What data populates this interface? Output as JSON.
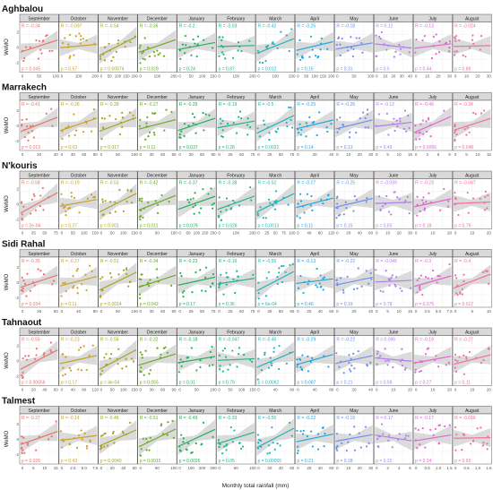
{
  "chart_data": {
    "type": "scatter",
    "xlabel": "Monthly total rainfall (mm)",
    "ylabel": "WeMO",
    "months": [
      "September",
      "October",
      "November",
      "December",
      "January",
      "February",
      "March",
      "April",
      "May",
      "June",
      "July",
      "August"
    ],
    "month_colors": [
      "#e8756b",
      "#c9a227",
      "#a3a51f",
      "#6aab1f",
      "#21b05c",
      "#1fb58f",
      "#1fb5ba",
      "#22a6dd",
      "#6f8ff0",
      "#b27ef0",
      "#e066d2",
      "#f06ea0"
    ],
    "stations": [
      {
        "name": "Aghbalou",
        "r": [
          "R = -0.34",
          "R = -0.097",
          "R = -0.54",
          "R = -0.36",
          "R = -0.2",
          "R = -0.03",
          "R = -0.42",
          "R = -0.25",
          "R = -0.18",
          "R = 0.12",
          "R = -0.13",
          "R = -0.024"
        ],
        "p": [
          "p = 0.045",
          "p = 0.57",
          "p = 0.00074",
          "p = 0.029",
          "p = 0.24",
          "p = 0.87",
          "p = 0.012",
          "p = 0.15",
          "p = 0.31",
          "p = 0.5",
          "p = 0.44",
          "p = 0.89"
        ],
        "xticks": [
          [
            "0",
            "50",
            "100"
          ],
          [
            "0",
            "100",
            "200"
          ],
          [
            "0",
            "50",
            "100",
            "150",
            "200"
          ],
          [
            "0",
            "100",
            "200"
          ],
          [
            "0",
            "50",
            "100",
            "150"
          ],
          [
            "0",
            "100",
            "200"
          ],
          [
            "0",
            "100",
            "200"
          ],
          [
            "0",
            "50",
            "100",
            "150",
            "200"
          ],
          [
            "0",
            "50",
            "100"
          ],
          [
            "0",
            "10",
            "20",
            "30",
            "40"
          ],
          [
            "0",
            "10",
            "20",
            "30"
          ],
          [
            "0",
            "10",
            "20",
            "30"
          ]
        ]
      },
      {
        "name": "Marrakech",
        "r": [
          "R = -0.41",
          "R = -0.36",
          "R = -0.39",
          "R = -0.27",
          "R = -0.35",
          "R = -0.19",
          "R = -0.5",
          "R = -0.25",
          "R = -0.26",
          "R = -0.12",
          "R = -0.46",
          "R = -0.34"
        ],
        "p": [
          "p = 0.013",
          "p = 0.03",
          "p = 0.017",
          "p = 0.11",
          "p = 0.037",
          "p = 0.28",
          "p = 0.0021",
          "p = 0.14",
          "p = 0.13",
          "p = 0.49",
          "p = 0.0056",
          "p = 0.048"
        ],
        "xticks": [
          [
            "0",
            "20",
            "40"
          ],
          [
            "0",
            "30",
            "60",
            "90"
          ],
          [
            "0",
            "50",
            "100"
          ],
          [
            "0",
            "30",
            "60",
            "90"
          ],
          [
            "0",
            "30",
            "60",
            "90"
          ],
          [
            "0",
            "25",
            "50",
            "75"
          ],
          [
            "0",
            "25",
            "50",
            "75"
          ],
          [
            "0",
            "20",
            "40"
          ],
          [
            "0",
            "10",
            "20",
            "30"
          ],
          [
            "0",
            "5",
            "10",
            "15"
          ],
          [
            "0",
            "3",
            "6",
            "9"
          ],
          [
            "0",
            "5",
            "10",
            "15"
          ]
        ]
      },
      {
        "name": "N'kouris",
        "r": [
          "R = -0.58",
          "R = -0.19",
          "R = -0.53",
          "R = -0.42",
          "R = -0.37",
          "R = -0.38",
          "R = -0.52",
          "R = -0.27",
          "R = -0.25",
          "R = -0.039",
          "R = -0.23",
          "R = -0.047"
        ],
        "p": [
          "p = 2e-04",
          "p = 0.27",
          "p = 0.001",
          "p = 0.011",
          "p = 0.029",
          "p = 0.026",
          "p = 0.0013",
          "p = 0.11",
          "p = 0.15",
          "p = 0.83",
          "p = 0.18",
          "p = 0.79"
        ],
        "xticks": [
          [
            "0",
            "25",
            "50",
            "75"
          ],
          [
            "0",
            "50",
            "100",
            "150"
          ],
          [
            "0",
            "50",
            "100",
            "150"
          ],
          [
            "0",
            "50",
            "100"
          ],
          [
            "0",
            "50",
            "100",
            "150",
            "250"
          ],
          [
            "0",
            "100",
            "200"
          ],
          [
            "0",
            "25",
            "50",
            "75",
            "100"
          ],
          [
            "0",
            "40",
            "80",
            "120"
          ],
          [
            "0",
            "20",
            "40",
            "60"
          ],
          [
            "0",
            "10",
            "20",
            "30"
          ],
          [
            "0",
            "10",
            "20"
          ],
          [
            "0",
            "10",
            "20"
          ]
        ]
      },
      {
        "name": "Sidi Rahal",
        "r": [
          "R = -0.35",
          "R = -0.27",
          "R = -0.51",
          "R = -0.34",
          "R = -0.23",
          "R = -0.16",
          "R = -0.55",
          "R = -0.13",
          "R = -0.22",
          "R = -0.048",
          "R = -0.3",
          "R = -0.4"
        ],
        "p": [
          "p = 0.034",
          "p = 0.11",
          "p = 0.0014",
          "p = 0.042",
          "p = 0.17",
          "p = 0.36",
          "p = 6e-04",
          "p = 0.46",
          "p = 0.19",
          "p = 0.78",
          "p = 0.075",
          "p = 0.017"
        ],
        "xticks": [
          [
            "0",
            "25",
            "50"
          ],
          [
            "0",
            "40",
            "80"
          ],
          [
            "0",
            "50",
            "100"
          ],
          [
            "0",
            "30",
            "60",
            "90"
          ],
          [
            "0",
            "25",
            "50",
            "75"
          ],
          [
            "0",
            "25",
            "50",
            "75"
          ],
          [
            "0",
            "30",
            "60",
            "90"
          ],
          [
            "0",
            "20",
            "40",
            "60"
          ],
          [
            "0",
            "20",
            "40"
          ],
          [
            "0",
            "5",
            "10",
            "15"
          ],
          [
            "0",
            "2.5",
            "5.0",
            "7.5"
          ],
          [
            "0",
            "5",
            "10"
          ]
        ]
      },
      {
        "name": "Tahnaout",
        "r": [
          "R = -0.55",
          "R = -0.23",
          "R = -0.56",
          "R = -0.32",
          "R = -0.18",
          "R = -0.047",
          "R = -0.45",
          "R = -0.29",
          "R = -0.22",
          "R = 0.096",
          "R = -0.19",
          "R = -0.27"
        ],
        "p": [
          "p = 0.00056",
          "p = 0.17",
          "p = 4e-04",
          "p = 0.055",
          "p = 0.31",
          "p = 0.79",
          "p = 0.0062",
          "p = 0.087",
          "p = 0.21",
          "p = 0.58",
          "p = 0.27",
          "p = 0.11"
        ],
        "xticks": [
          [
            "0",
            "20",
            "40",
            "60"
          ],
          [
            "0",
            "40",
            "80",
            "120"
          ],
          [
            "0",
            "50",
            "100",
            "150"
          ],
          [
            "0",
            "30",
            "60",
            "90"
          ],
          [
            "0",
            "50",
            "100"
          ],
          [
            "0",
            "50",
            "100",
            "150"
          ],
          [
            "0",
            "40",
            "80"
          ],
          [
            "0",
            "40",
            "80"
          ],
          [
            "0",
            "20",
            "40"
          ],
          [
            "0",
            "10",
            "20"
          ],
          [
            "0",
            "10",
            "20"
          ],
          [
            "0",
            "10",
            "20"
          ]
        ]
      },
      {
        "name": "Talmest",
        "r": [
          "R = -0.37",
          "R = -0.14",
          "R = -0.46",
          "R = -0.51",
          "R = -0.49",
          "R = -0.33",
          "R = -0.55",
          "R = -0.22",
          "R = -0.19",
          "R = 0.17",
          "R = -0.17",
          "R = -0.016"
        ],
        "p": [
          "p = 0.026",
          "p = 0.43",
          "p = 0.0049",
          "p = 0.0015",
          "p = 0.0026",
          "p = 0.05",
          "p = 0.00055",
          "p = 0.21",
          "p = 0.28",
          "p = 0.32",
          "p = 0.34",
          "p = 0.93"
        ],
        "xticks": [
          [
            "0",
            "5",
            "10",
            "15"
          ],
          [
            "0",
            "2.5",
            "5.0",
            "7.5"
          ],
          [
            "0",
            "20",
            "40",
            "60"
          ],
          [
            "0",
            "50",
            "100"
          ],
          [
            "0",
            "100",
            "200",
            "300"
          ],
          [
            "0",
            "50",
            "100"
          ],
          [
            "0",
            "20",
            "40",
            "60"
          ],
          [
            "0",
            "20",
            "40",
            "60"
          ],
          [
            "0",
            "10",
            "20",
            "30"
          ],
          [
            "0",
            "2",
            "4",
            "6"
          ],
          [
            "0",
            "0.5",
            "1.0",
            "1.5"
          ],
          [
            "0",
            "0.5",
            "1.0",
            "1.5"
          ]
        ]
      }
    ]
  }
}
